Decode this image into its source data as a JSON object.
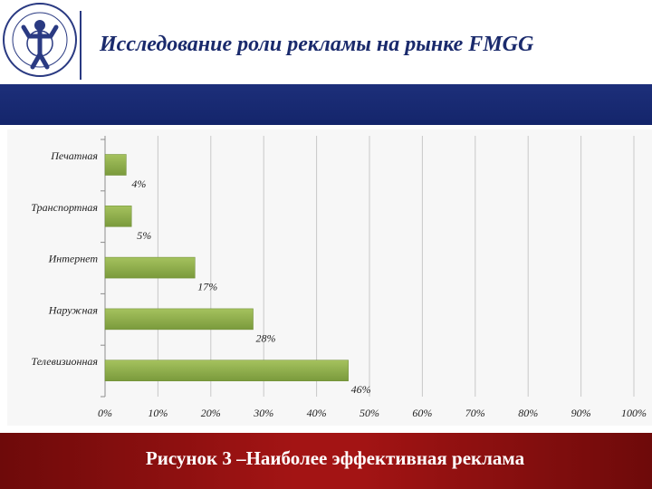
{
  "header": {
    "title": "Исследование роли рекламы на рынке FMGG"
  },
  "caption": "Рисунок 3 –Наиболее эффективная реклама",
  "colors": {
    "header_blue": "#1d2f7a",
    "footer_red": "#a31414",
    "bar_green": "#7a9a3c",
    "bar_green_light": "#a5c25e"
  },
  "chart_data": {
    "type": "bar",
    "orientation": "horizontal",
    "categories": [
      "Печатная",
      "Транспортная",
      "Интернет",
      "Наружная",
      "Телевизионная"
    ],
    "values": [
      4,
      5,
      17,
      28,
      46
    ],
    "data_labels": [
      "4%",
      "5%",
      "17%",
      "28%",
      "46%"
    ],
    "xticks": [
      "0%",
      "10%",
      "20%",
      "30%",
      "40%",
      "50%",
      "60%",
      "70%",
      "80%",
      "90%",
      "100%"
    ],
    "xlim": [
      0,
      100
    ],
    "title": "",
    "xlabel": "",
    "ylabel": "",
    "grid": true,
    "legend": "none"
  }
}
